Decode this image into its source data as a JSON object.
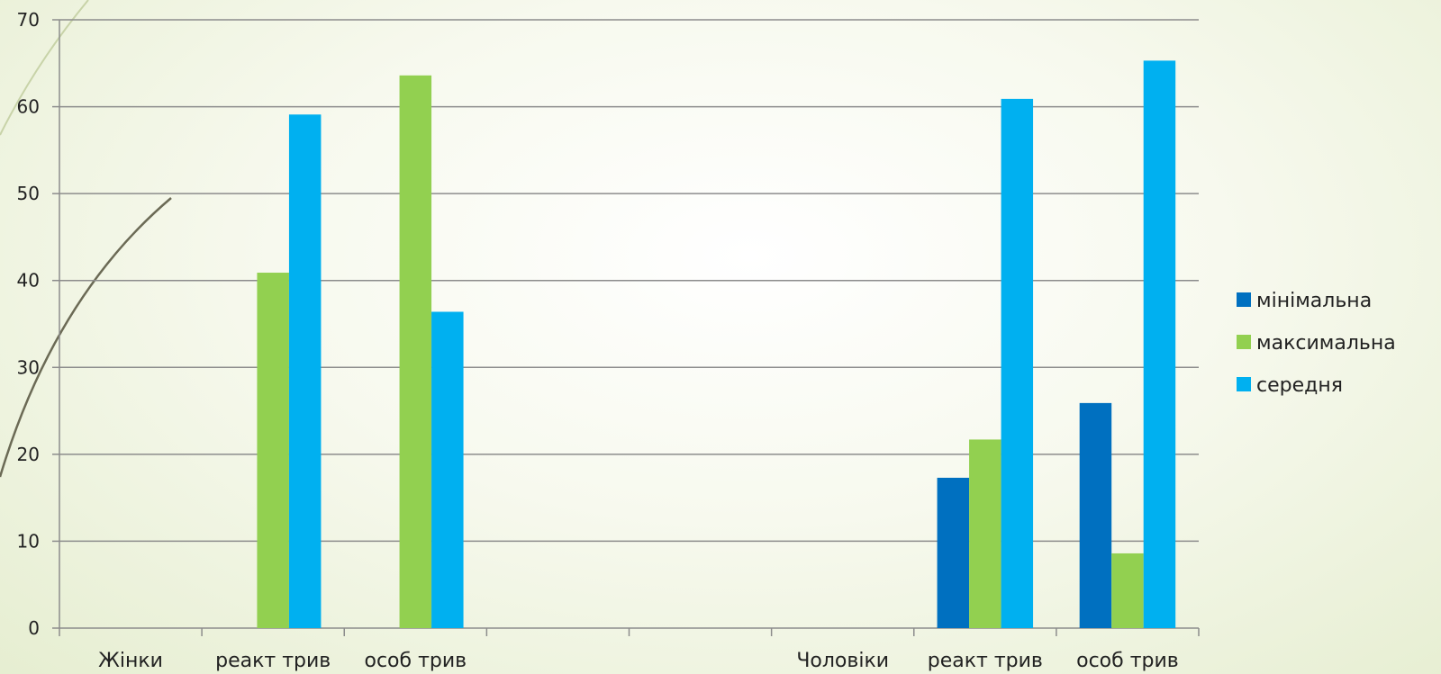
{
  "chart_data": {
    "type": "bar",
    "categories": [
      "Жінки",
      "реакт трив",
      "особ трив",
      "",
      "",
      "Чоловіки",
      "реакт трив",
      "особ трив"
    ],
    "series": [
      {
        "name": "мінімальна",
        "color": "#0070c0",
        "values": [
          null,
          null,
          null,
          null,
          null,
          null,
          17.3,
          25.9
        ]
      },
      {
        "name": "максимальна",
        "color": "#92d050",
        "values": [
          null,
          40.9,
          63.6,
          null,
          null,
          null,
          21.7,
          8.6
        ]
      },
      {
        "name": "середня",
        "color": "#00b0f0",
        "values": [
          null,
          59.1,
          36.4,
          null,
          null,
          null,
          60.9,
          65.3
        ]
      }
    ],
    "ylim": [
      0,
      70
    ],
    "yticks": [
      0,
      10,
      20,
      30,
      40,
      50,
      60,
      70
    ],
    "grid": true,
    "legend_position": "right"
  }
}
